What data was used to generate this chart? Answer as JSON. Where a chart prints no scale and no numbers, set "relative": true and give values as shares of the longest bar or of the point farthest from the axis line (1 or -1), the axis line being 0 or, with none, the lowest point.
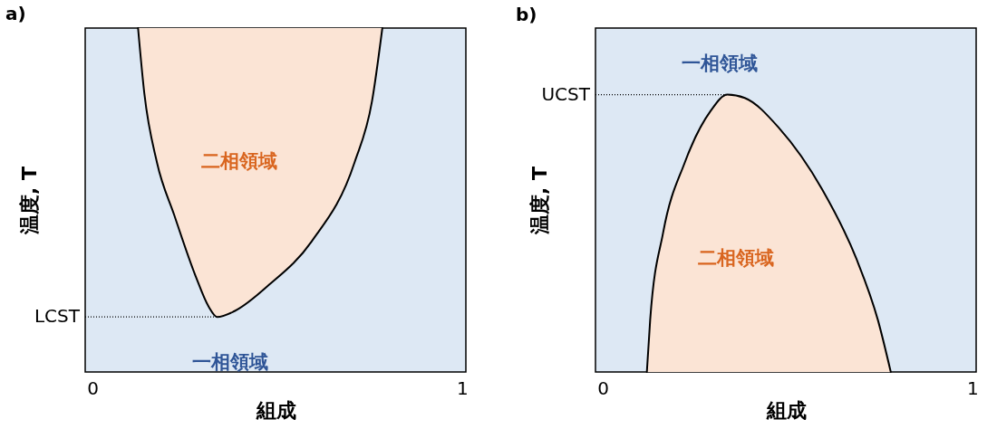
{
  "chart_data": [
    {
      "type": "line",
      "title": "a)",
      "xlabel": "組成",
      "ylabel": "温度, T",
      "relative": true,
      "xlim": [
        -0.02,
        1.01
      ],
      "xticks": [
        0,
        1
      ],
      "grid": false,
      "tick_labels": "x",
      "x": [
        0.123,
        0.14,
        0.174,
        0.221,
        0.279,
        0.314,
        0.337,
        0.384,
        0.477,
        0.593,
        0.709,
        0.756,
        0.784
      ],
      "series": [
        {
          "color": "#000000",
          "line_style": "solid",
          "values": [
            1.0,
            0.81,
            0.61,
            0.456,
            0.278,
            0.19,
            0.16,
            0.177,
            0.253,
            0.38,
            0.61,
            0.787,
            1.0
          ],
          "lower": [
            1.0,
            0.81,
            0.61,
            0.456,
            0.278,
            0.19,
            0.16,
            0.177,
            0.253,
            0.38,
            0.61,
            0.787,
            1.0
          ],
          "upper": [
            1,
            1,
            1,
            1,
            1,
            1,
            1,
            1,
            1,
            1,
            1,
            1,
            1
          ]
        }
      ],
      "ref_lines": [
        {
          "axis": "y",
          "value": 0.16,
          "label": "LCST",
          "color": "#000000",
          "line_style": "dotted"
        }
      ],
      "annotations": [
        "二相領域",
        "一相領域"
      ]
    },
    {
      "type": "line",
      "title": "b)",
      "xlabel": "組成",
      "ylabel": "温度, T",
      "relative": true,
      "xlim": [
        -0.02,
        1.01
      ],
      "xticks": [
        0,
        1
      ],
      "grid": false,
      "tick_labels": "x",
      "x": [
        0.119,
        0.128,
        0.163,
        0.221,
        0.291,
        0.337,
        0.384,
        0.477,
        0.593,
        0.686,
        0.744,
        0.779
      ],
      "series": [
        {
          "color": "#000000",
          "line_style": "solid",
          "values": [
            0,
            0.188,
            0.502,
            0.753,
            0.94,
            1,
            0.988,
            0.879,
            0.659,
            0.408,
            0.188,
            0
          ],
          "lower": [
            0,
            0,
            0,
            0,
            0,
            0,
            0,
            0,
            0,
            0,
            0,
            0
          ],
          "upper": [
            0,
            0.188,
            0.502,
            0.753,
            0.94,
            1,
            0.988,
            0.879,
            0.659,
            0.408,
            0.188,
            0
          ]
        }
      ],
      "ref_lines": [
        {
          "axis": "y",
          "value": 1,
          "label": "UCST",
          "color": "#000000",
          "line_style": "dotted"
        }
      ],
      "annotations": [
        "一相領域",
        "二相領域"
      ]
    }
  ]
}
